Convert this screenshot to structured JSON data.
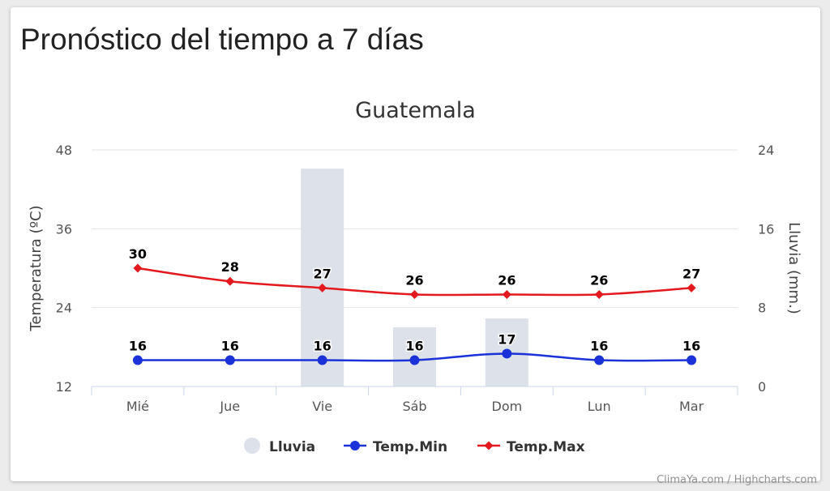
{
  "page_title": "Pronóstico del tiempo a 7 días",
  "credits": "ClimaYa.com / Highcharts.com",
  "chart_data": {
    "type": "bar",
    "title": "Guatemala",
    "categories": [
      "Mié",
      "Jue",
      "Vie",
      "Sáb",
      "Dom",
      "Lun",
      "Mar"
    ],
    "y_left": {
      "label": "Temperatura (ºC)",
      "range": [
        12,
        48
      ],
      "ticks": [
        12,
        24,
        36,
        48
      ]
    },
    "y_right": {
      "label": "Lluvia (mm.)",
      "range": [
        0,
        24
      ],
      "ticks": [
        0,
        8,
        16,
        24
      ]
    },
    "grid": true,
    "legend_position": "bottom-center",
    "series": [
      {
        "name": "Lluvia",
        "kind": "column",
        "axis": "right",
        "color": "#dde2ea",
        "values": [
          0,
          0,
          22.1,
          6,
          6.9,
          0,
          0
        ]
      },
      {
        "name": "Temp.Min",
        "kind": "spline",
        "axis": "left",
        "color": "#1a32d8",
        "marker": "circle",
        "values": [
          16,
          16,
          16,
          16,
          17,
          16,
          16
        ]
      },
      {
        "name": "Temp.Max",
        "kind": "spline",
        "axis": "left",
        "color": "#e3191e",
        "marker": "diamond",
        "values": [
          30,
          28,
          27,
          26,
          26,
          26,
          27
        ]
      }
    ]
  }
}
